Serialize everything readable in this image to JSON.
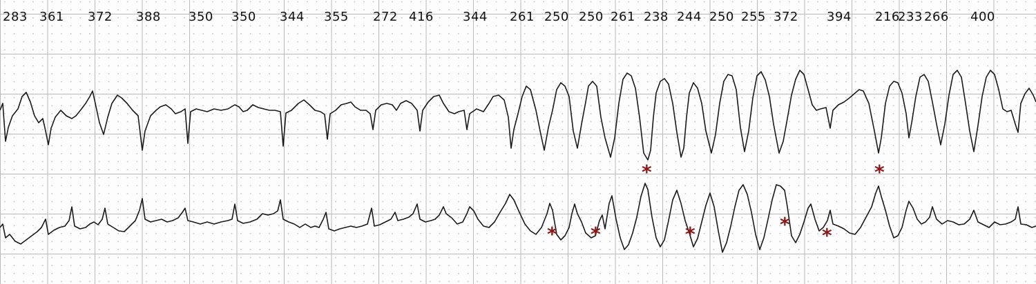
{
  "rr_intervals": [
    "283",
    "361",
    "372",
    "388",
    "350",
    "350",
    "344",
    "355",
    "272",
    "416",
    "344",
    "261",
    "250",
    "250",
    "261",
    "238",
    "244",
    "250",
    "255",
    "372",
    "394",
    "216",
    "233",
    "266",
    "400"
  ],
  "marker_symbol": "*",
  "colors": {
    "trace": "#1a1a1a",
    "marker": "#8b1a1a",
    "grid_major": "#b9b9b9",
    "grid_dot": "#cfcfcf",
    "paper": "#fdfdfd"
  }
}
